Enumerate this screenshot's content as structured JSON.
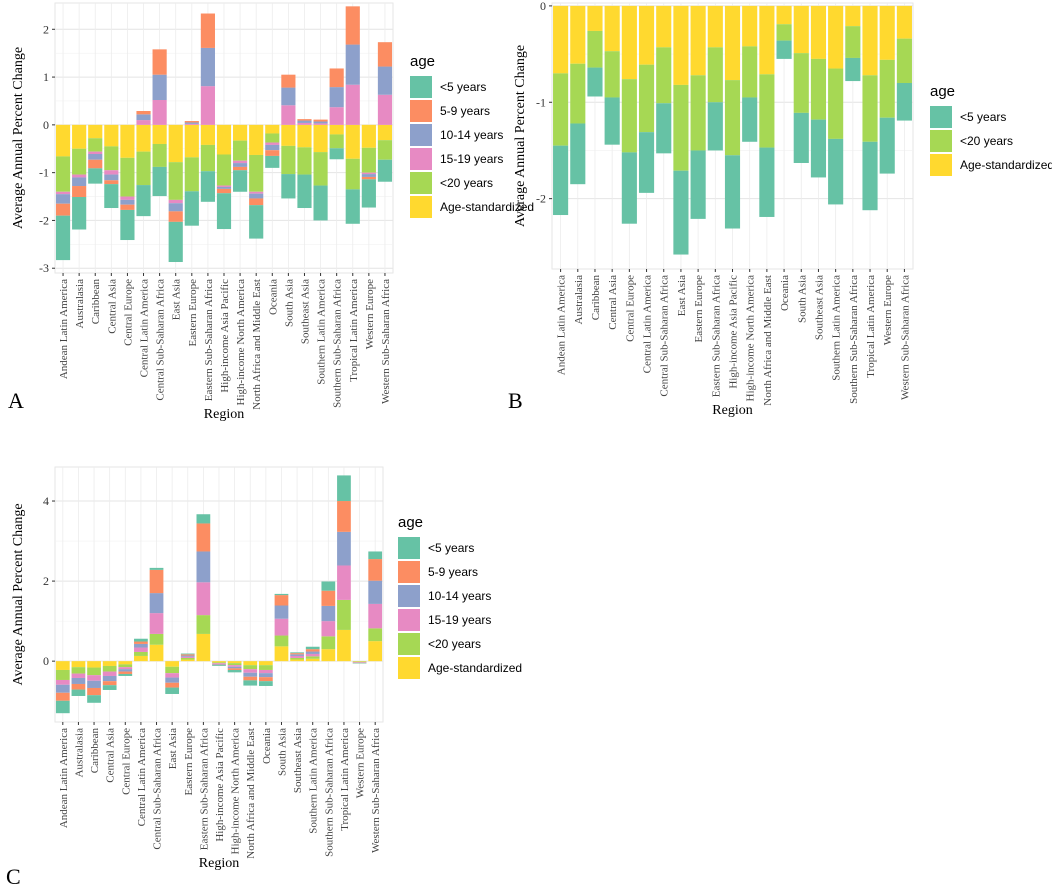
{
  "colors": {
    "<5 years": "#66C2A5",
    "5-9 years": "#FC8D62",
    "10-14 years": "#8DA0CB",
    "15-19 years": "#E78AC3",
    "<20 years": "#A6D854",
    "Age-standardized": "#FFD92F"
  },
  "chart_data": [
    {
      "panel": "A",
      "type": "bar",
      "stacked": true,
      "xlabel": "Region",
      "ylabel": "Average Annual Percent Change",
      "ylim": [
        -3.1,
        2.55
      ],
      "yticks": [
        -3,
        -2,
        -1,
        0,
        1,
        2
      ],
      "legend_title": "age",
      "legend_entries": [
        "<5 years",
        "5-9 years",
        "10-14 years",
        "15-19 years",
        "<20 years",
        "Age-standardized"
      ],
      "categories": [
        "Andean Latin America",
        "Australasia",
        "Caribbean",
        "Central Asia",
        "Central Europe",
        "Central Latin America",
        "Central Sub-Saharan Africa",
        "East Asia",
        "Eastern Europe",
        "Eastern Sub-Saharan Africa",
        "High-income Asia Pacific",
        "High-income North America",
        "North Africa and Middle East",
        "Oceania",
        "South Asia",
        "Southeast Asia",
        "Southern Latin America",
        "Southern Sub-Saharan Africa",
        "Tropical Latin America",
        "Western Europe",
        "Western Sub-Saharan Africa"
      ],
      "series": [
        {
          "name": "Age-standardized",
          "values": [
            -0.66,
            -0.5,
            -0.28,
            -0.45,
            -0.69,
            -0.56,
            -0.4,
            -0.78,
            -0.68,
            -0.42,
            -0.62,
            -0.33,
            -0.63,
            -0.18,
            -0.44,
            -0.47,
            -0.57,
            -0.2,
            -0.71,
            -0.48,
            -0.32
          ]
        },
        {
          "name": "<20 years",
          "values": [
            -0.74,
            -0.54,
            -0.28,
            -0.5,
            -0.81,
            -0.7,
            -0.48,
            -0.79,
            -0.71,
            -0.55,
            -0.65,
            -0.42,
            -0.77,
            -0.19,
            -0.59,
            -0.57,
            -0.7,
            -0.29,
            -0.64,
            -0.52,
            -0.41
          ]
        },
        {
          "name": "15-19 years",
          "values": [
            -0.05,
            -0.06,
            -0.05,
            -0.09,
            -0.07,
            0.1,
            0.52,
            -0.07,
            0.02,
            0.81,
            -0.03,
            -0.05,
            -0.04,
            -0.05,
            0.41,
            0.04,
            0.03,
            0.37,
            0.84,
            -0.03,
            0.63
          ]
        },
        {
          "name": "10-14 years",
          "values": [
            -0.2,
            -0.18,
            -0.12,
            -0.12,
            -0.1,
            0.12,
            0.53,
            -0.17,
            0.03,
            0.8,
            -0.04,
            -0.08,
            -0.1,
            -0.11,
            0.37,
            0.05,
            0.04,
            0.42,
            0.84,
            -0.06,
            0.59
          ]
        },
        {
          "name": "5-9 years",
          "values": [
            -0.25,
            -0.23,
            -0.18,
            -0.08,
            -0.11,
            0.07,
            0.53,
            -0.22,
            0.03,
            0.72,
            -0.09,
            -0.07,
            -0.14,
            -0.12,
            0.27,
            0.03,
            0.04,
            0.39,
            0.8,
            -0.05,
            0.51
          ]
        },
        {
          "name": "<5 years",
          "values": [
            -0.93,
            -0.68,
            -0.32,
            -0.5,
            -0.63,
            -0.65,
            -0.61,
            -0.84,
            -0.72,
            -0.64,
            -0.75,
            -0.45,
            -0.7,
            -0.25,
            -0.51,
            -0.7,
            -0.73,
            -0.23,
            -0.72,
            -0.59,
            -0.46
          ]
        }
      ]
    },
    {
      "panel": "B",
      "type": "bar",
      "stacked": true,
      "xlabel": "Region",
      "ylabel": "Average Annual Percent Change",
      "ylim": [
        -2.73,
        0.03
      ],
      "yticks": [
        -2,
        -1,
        0
      ],
      "legend_title": "age",
      "legend_entries": [
        "<5 years",
        "<20 years",
        "Age-standardized"
      ],
      "categories": [
        "Andean Latin America",
        "Australasia",
        "Caribbean",
        "Central Asia",
        "Central Europe",
        "Central Latin America",
        "Central Sub-Saharan Africa",
        "East Asia",
        "Eastern Europe",
        "Eastern Sub-Saharan Africa",
        "High-income Asia Pacific",
        "High-income North America",
        "North Africa and Middle East",
        "Oceania",
        "South Asia",
        "Southeast Asia",
        "Southern Latin America",
        "Southern Sub-Saharan Africa",
        "Tropical Latin America",
        "Western Europe",
        "Western Sub-Saharan Africa"
      ],
      "series": [
        {
          "name": "Age-standardized",
          "values": [
            -0.7,
            -0.6,
            -0.26,
            -0.47,
            -0.76,
            -0.61,
            -0.43,
            -0.82,
            -0.72,
            -0.43,
            -0.77,
            -0.42,
            -0.71,
            -0.19,
            -0.49,
            -0.55,
            -0.65,
            -0.21,
            -0.72,
            -0.56,
            -0.34
          ]
        },
        {
          "name": "<20 years",
          "values": [
            -0.75,
            -0.62,
            -0.38,
            -0.48,
            -0.76,
            -0.7,
            -0.58,
            -0.89,
            -0.78,
            -0.57,
            -0.78,
            -0.53,
            -0.76,
            -0.17,
            -0.62,
            -0.63,
            -0.73,
            -0.33,
            -0.69,
            -0.6,
            -0.46
          ]
        },
        {
          "name": "<5 years",
          "values": [
            -0.72,
            -0.63,
            -0.3,
            -0.49,
            -0.74,
            -0.63,
            -0.52,
            -0.87,
            -0.71,
            -0.5,
            -0.76,
            -0.46,
            -0.72,
            -0.19,
            -0.52,
            -0.6,
            -0.68,
            -0.24,
            -0.71,
            -0.58,
            -0.39
          ]
        }
      ]
    },
    {
      "panel": "C",
      "type": "bar",
      "stacked": true,
      "xlabel": "Region",
      "ylabel": "Average Annual Percent Change",
      "ylim": [
        -1.52,
        4.85
      ],
      "yticks": [
        0,
        2,
        4
      ],
      "legend_title": "age",
      "legend_entries": [
        "<5 years",
        "5-9 years",
        "10-14 years",
        "15-19 years",
        "<20 years",
        "Age-standardized"
      ],
      "categories": [
        "Andean Latin America",
        "Australasia",
        "Caribbean",
        "Central Asia",
        "Central Europe",
        "Central Latin America",
        "Central Sub-Saharan Africa",
        "East Asia",
        "Eastern Europe",
        "Eastern Sub-Saharan Africa",
        "High-income Asia Pacific",
        "High-income North America",
        "North Africa and Middle East",
        "Oceania",
        "South Asia",
        "Southeast Asia",
        "Southern Latin America",
        "Southern Sub-Saharan Africa",
        "Tropical Latin America",
        "Western Europe",
        "Western Sub-Saharan Africa"
      ],
      "series": [
        {
          "name": "Age-standardized",
          "values": [
            -0.22,
            -0.15,
            -0.16,
            -0.12,
            -0.08,
            0.13,
            0.41,
            -0.14,
            0.04,
            0.68,
            -0.03,
            -0.05,
            -0.1,
            -0.1,
            0.37,
            0.04,
            0.06,
            0.3,
            0.78,
            -0.01,
            0.5
          ]
        },
        {
          "name": "<20 years",
          "values": [
            -0.25,
            -0.16,
            -0.19,
            -0.14,
            -0.07,
            0.1,
            0.27,
            -0.16,
            0.04,
            0.47,
            -0.02,
            -0.05,
            -0.1,
            -0.12,
            0.27,
            0.04,
            0.06,
            0.32,
            0.75,
            -0.01,
            0.32
          ]
        },
        {
          "name": "15-19 years",
          "values": [
            -0.12,
            -0.11,
            -0.14,
            -0.11,
            -0.05,
            0.11,
            0.52,
            -0.11,
            0.03,
            0.82,
            -0.02,
            -0.04,
            -0.09,
            -0.08,
            0.42,
            0.05,
            0.06,
            0.38,
            0.86,
            -0.01,
            0.61
          ]
        },
        {
          "name": "10-14 years",
          "values": [
            -0.2,
            -0.15,
            -0.18,
            -0.13,
            -0.06,
            0.09,
            0.5,
            -0.13,
            0.03,
            0.77,
            -0.02,
            -0.04,
            -0.1,
            -0.1,
            0.33,
            0.04,
            0.06,
            0.38,
            0.84,
            -0.01,
            0.58
          ]
        },
        {
          "name": "5-9 years",
          "values": [
            -0.2,
            -0.14,
            -0.18,
            -0.1,
            -0.06,
            0.06,
            0.58,
            -0.12,
            0.03,
            0.7,
            -0.01,
            -0.04,
            -0.09,
            -0.1,
            0.26,
            0.03,
            0.06,
            0.38,
            0.77,
            -0.01,
            0.54
          ]
        },
        {
          "name": "<5 years",
          "values": [
            -0.31,
            -0.16,
            -0.19,
            -0.12,
            -0.05,
            0.07,
            0.05,
            -0.16,
            0.02,
            0.23,
            -0.02,
            -0.06,
            -0.13,
            -0.12,
            0.03,
            0.02,
            0.06,
            0.23,
            0.64,
            -0.01,
            0.19
          ]
        }
      ]
    }
  ]
}
